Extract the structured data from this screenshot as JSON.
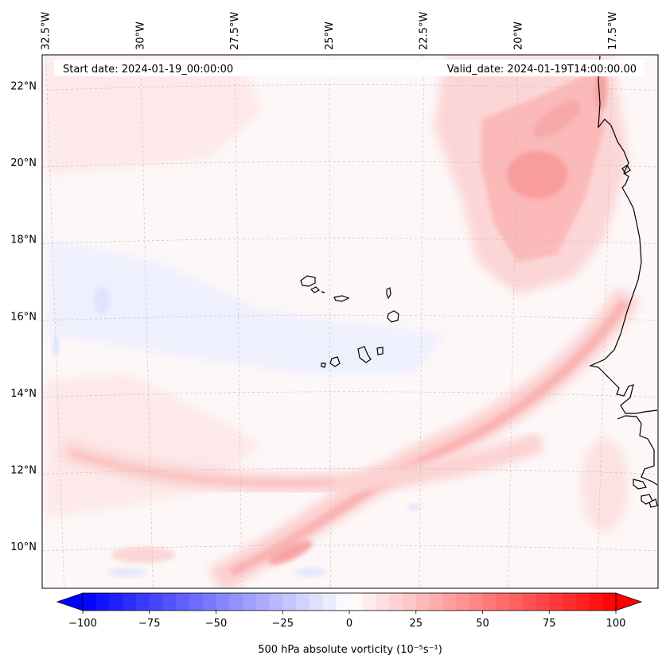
{
  "map": {
    "start_label": "Start date: 2024-01-19_00:00:00",
    "valid_label": "Valid_date: 2024-01-19T14:00:00.00",
    "lon_labels": [
      {
        "text": "32.5°W",
        "lon": -32.5
      },
      {
        "text": "30°W",
        "lon": -30
      },
      {
        "text": "27.5°W",
        "lon": -27.5
      },
      {
        "text": "25°W",
        "lon": -25
      },
      {
        "text": "22.5°W",
        "lon": -22.5
      },
      {
        "text": "20°W",
        "lon": -20
      },
      {
        "text": "17.5°W",
        "lon": -17.5
      }
    ],
    "lat_labels": [
      {
        "text": "22°N",
        "lat": 22
      },
      {
        "text": "20°N",
        "lat": 20
      },
      {
        "text": "18°N",
        "lat": 18
      },
      {
        "text": "16°N",
        "lat": 16
      },
      {
        "text": "14°N",
        "lat": 14
      },
      {
        "text": "12°N",
        "lat": 12
      },
      {
        "text": "10°N",
        "lat": 10
      }
    ],
    "extent": {
      "lon_min": -32.6,
      "lon_max": -16.3,
      "lat_min": 8.9,
      "lat_max": 22.8
    },
    "colors": {
      "positive": "#ff0000",
      "negative": "#0000ff",
      "coast": "#000000",
      "grid": "#bdbdbd"
    }
  },
  "colorbar": {
    "ticks": [
      -100,
      -75,
      -50,
      -25,
      0,
      25,
      50,
      75,
      100
    ],
    "tick_labels": [
      "−100",
      "−75",
      "−50",
      "−25",
      "0",
      "25",
      "50",
      "75",
      "100"
    ],
    "vmin": -100,
    "vmax": 100,
    "levels": 40,
    "label": "500 hPa absolute vorticity (10⁻⁵s⁻¹)"
  }
}
